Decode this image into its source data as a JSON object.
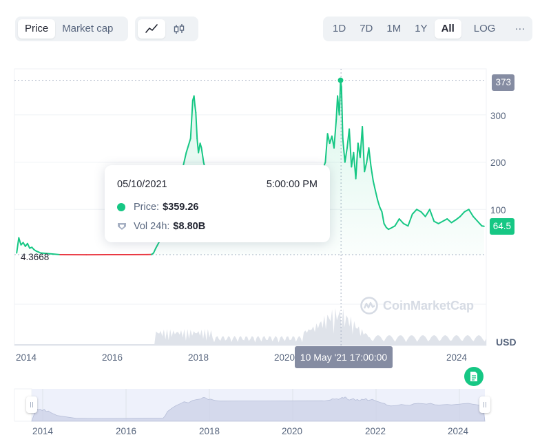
{
  "toolbar": {
    "metric_tabs": [
      "Price",
      "Market cap"
    ],
    "active_metric": "Price",
    "range_tabs": [
      "1D",
      "7D",
      "1M",
      "1Y",
      "All"
    ],
    "active_range": "All",
    "scale_toggle": "LOG",
    "more_label": "···"
  },
  "tooltip": {
    "date": "05/10/2021",
    "time": "5:00:00 PM",
    "price_label": "Price:",
    "price_value": "$359.26",
    "volume_label": "Vol 24h:",
    "volume_value": "$8.80B"
  },
  "crosshair_time_label": "10 May '21 17:00:00",
  "start_price_label": "4.3668",
  "max_price_tag": "373",
  "current_price_tag": "64.5",
  "currency_label": "USD",
  "watermark_text": "CoinMarketCap",
  "colors": {
    "up": "#16c784",
    "down": "#ea3943",
    "tag_gray": "#858ca2"
  },
  "chart_data": {
    "type": "line",
    "ylim": [
      0,
      390
    ],
    "yticks": [
      100,
      200,
      300
    ],
    "xticks": [
      "2014",
      "2016",
      "2018",
      "2020",
      "2022",
      "2024"
    ],
    "ylabel": "USD",
    "series": [
      {
        "x": [
          2013.9,
          2013.95,
          2014.0,
          2014.05,
          2014.1,
          2014.15,
          2014.2,
          2014.25,
          2014.3,
          2014.35,
          2014.4,
          2014.45,
          2014.9,
          2015.5,
          2016.0,
          2016.5,
          2016.9,
          2017.0,
          2017.05,
          2017.1,
          2017.2,
          2017.3,
          2017.4,
          2017.5,
          2017.6,
          2017.7,
          2017.8,
          2017.9,
          2017.95,
          2017.98,
          2018.0,
          2018.02,
          2018.05,
          2018.08,
          2018.12,
          2018.15,
          2018.2,
          2018.25,
          2018.35,
          2020.8,
          2020.85,
          2020.92,
          2021.0,
          2021.05,
          2021.1,
          2021.15,
          2021.2,
          2021.25,
          2021.28,
          2021.32,
          2021.35,
          2021.37,
          2021.4,
          2021.45,
          2021.5,
          2021.55,
          2021.6,
          2021.65,
          2021.7,
          2021.75,
          2021.8,
          2021.85,
          2021.9,
          2021.95,
          2022.0,
          2022.05,
          2022.1,
          2022.15,
          2022.2,
          2022.25,
          2022.3,
          2022.35,
          2022.4,
          2022.45,
          2022.5,
          2022.6,
          2022.7,
          2022.8,
          2022.9,
          2023.0,
          2023.1,
          2023.2,
          2023.3,
          2023.4,
          2023.5,
          2023.6,
          2023.7,
          2023.8,
          2023.9,
          2024.0,
          2024.1,
          2024.2,
          2024.3,
          2024.4,
          2024.5,
          2024.55,
          2024.6,
          2024.65
        ],
        "y": [
          8,
          40,
          25,
          30,
          22,
          28,
          18,
          20,
          15,
          12,
          10,
          8,
          4.4,
          4.2,
          4.3,
          4.4,
          4.5,
          4.6,
          8,
          18,
          35,
          60,
          90,
          140,
          110,
          180,
          220,
          250,
          330,
          340,
          320,
          305,
          250,
          220,
          240,
          230,
          200,
          180,
          160,
          170,
          165,
          180,
          200,
          260,
          240,
          255,
          230,
          290,
          340,
          300,
          373,
          359,
          250,
          200,
          230,
          270,
          190,
          220,
          165,
          240,
          210,
          275,
          180,
          200,
          230,
          190,
          160,
          140,
          120,
          105,
          95,
          70,
          62,
          58,
          60,
          65,
          80,
          70,
          65,
          90,
          100,
          95,
          85,
          100,
          75,
          70,
          75,
          80,
          72,
          78,
          85,
          95,
          100,
          85,
          75,
          70,
          65,
          64.5
        ],
        "color_up": "#16c784",
        "color_down": "#ea3943"
      }
    ],
    "volume": {
      "type": "area",
      "note": "24h volume bars along bottom of chart, peak around 2021"
    },
    "navigator": {
      "xticks": [
        "2014",
        "2016",
        "2018",
        "2020",
        "2022",
        "2024"
      ]
    },
    "crosshair": {
      "x": 2021.36,
      "y": 359.26
    }
  }
}
